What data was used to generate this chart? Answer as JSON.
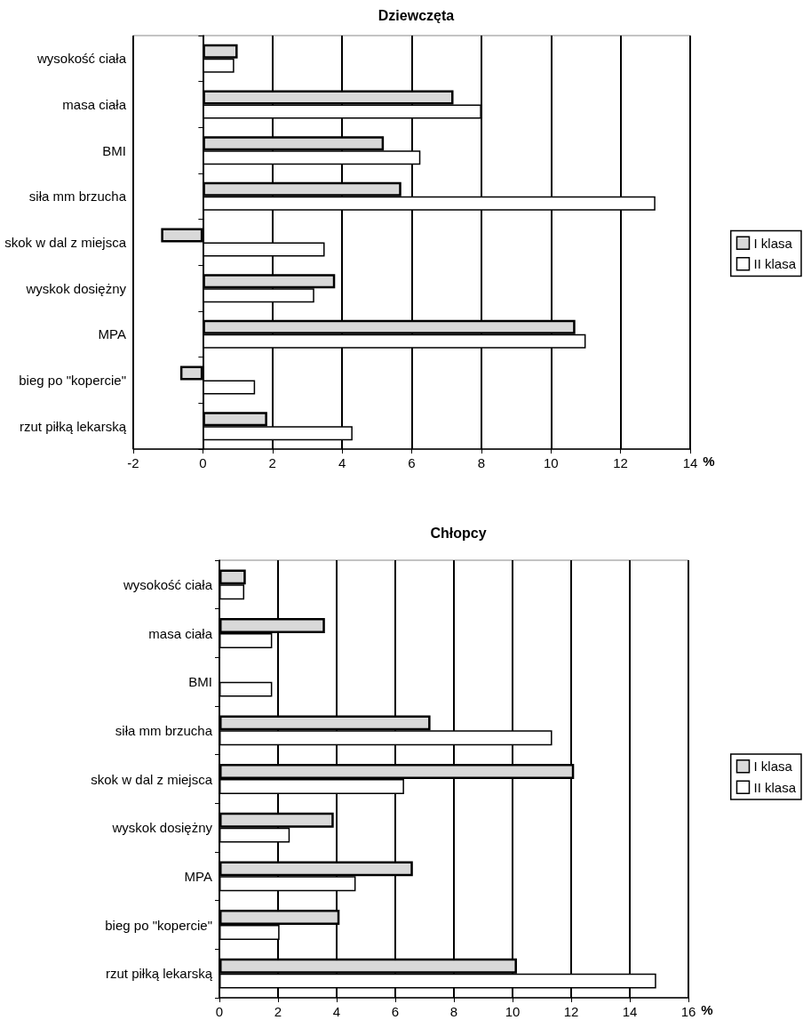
{
  "chart_data": [
    {
      "type": "bar",
      "orientation": "horizontal",
      "title": "Dziewczęta",
      "xlabel": "%",
      "categories": [
        "wysokość ciała",
        "masa ciała",
        "BMI",
        "siła mm brzucha",
        "skok w dal z miejsca",
        "wyskok dosiężny",
        "MPA",
        "bieg po \"kopercie\"",
        "rzut piłką lekarską"
      ],
      "series": [
        {
          "name": "I klasa",
          "color": "#d9d9d9",
          "values": [
            1.0,
            7.2,
            5.2,
            5.7,
            -1.2,
            3.8,
            10.7,
            -0.65,
            1.85
          ]
        },
        {
          "name": "II klasa",
          "color": "#ffffff",
          "values": [
            0.9,
            8.0,
            6.25,
            13.0,
            3.5,
            3.2,
            11.0,
            1.5,
            4.3
          ]
        }
      ],
      "xlim": [
        -2,
        14
      ],
      "xticks": [
        -2,
        0,
        2,
        4,
        6,
        8,
        10,
        12,
        14
      ],
      "grid": "x",
      "legend": "right"
    },
    {
      "type": "bar",
      "orientation": "horizontal",
      "title": "Chłopcy",
      "xlabel": "%",
      "categories": [
        "wysokość ciała",
        "masa ciała",
        "BMI",
        "siła mm brzucha",
        "skok w dal z miejsca",
        "wyskok dosiężny",
        "MPA",
        "bieg po \"kopercie\"",
        "rzut piłką lekarską"
      ],
      "series": [
        {
          "name": "I klasa",
          "color": "#d9d9d9",
          "values": [
            0.9,
            3.6,
            null,
            7.2,
            12.1,
            3.9,
            6.6,
            4.1,
            10.15
          ]
        },
        {
          "name": "II klasa",
          "color": "#ffffff",
          "values": [
            0.85,
            1.8,
            1.8,
            11.35,
            6.3,
            2.4,
            4.65,
            2.05,
            14.9
          ]
        }
      ],
      "xlim": [
        0,
        16
      ],
      "xticks": [
        0,
        2,
        4,
        6,
        8,
        10,
        12,
        14,
        16
      ],
      "grid": "x",
      "legend": "right"
    }
  ]
}
